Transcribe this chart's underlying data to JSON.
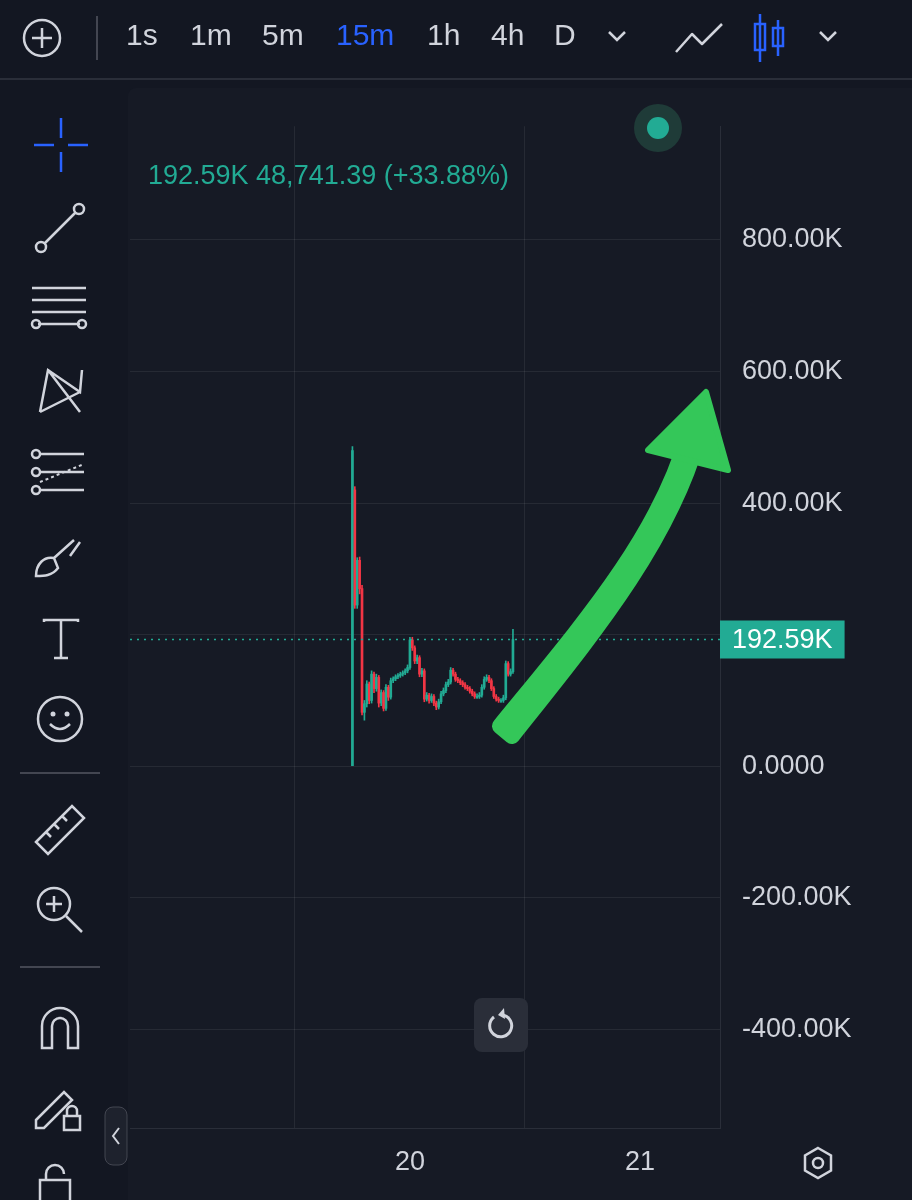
{
  "chart_data": {
    "type": "candlestick",
    "annotations": [
      "192.59K  48,741.39 (+33.88%)",
      "1s",
      "1m",
      "5m",
      "15m",
      "1h",
      "4h",
      "D"
    ],
    "x": [
      19.75,
      19.7604,
      19.7708,
      19.7813,
      19.7917,
      19.8021,
      19.8125,
      19.8229,
      19.8333,
      19.8438,
      19.8542,
      19.8646,
      19.875,
      19.8854,
      19.8958,
      19.9063,
      19.9167,
      19.9271,
      19.9375,
      19.9479,
      19.9583,
      19.9688,
      19.9792,
      19.9896,
      20.0,
      20.0104,
      20.0208,
      20.0313,
      20.0417,
      20.0521,
      20.0625,
      20.0729,
      20.0833,
      20.0938,
      20.1042,
      20.1146,
      20.125,
      20.1354,
      20.1458,
      20.1563,
      20.1667,
      20.1771,
      20.1875,
      20.1979,
      20.2083,
      20.2188,
      20.2292,
      20.2396,
      20.25,
      20.2604,
      20.2708,
      20.2813,
      20.2917,
      20.3021,
      20.3125,
      20.3229,
      20.3333,
      20.3438,
      20.3542,
      20.3646,
      20.375,
      20.3854,
      20.3958,
      20.4063,
      20.4167,
      20.4271,
      20.4375,
      20.4479
    ],
    "ohlc": [
      [
        0,
        486000,
        0,
        480000
      ],
      [
        420000,
        425000,
        240000,
        245000
      ],
      [
        245000,
        317000,
        240000,
        313000
      ],
      [
        313000,
        318000,
        262000,
        270000
      ],
      [
        270000,
        275000,
        78000,
        82000
      ],
      [
        82000,
        100000,
        70000,
        95000
      ],
      [
        95000,
        130000,
        90000,
        125000
      ],
      [
        125000,
        128000,
        95000,
        100000
      ],
      [
        100000,
        145000,
        96000,
        140000
      ],
      [
        140000,
        143000,
        112000,
        118000
      ],
      [
        118000,
        140000,
        114000,
        135000
      ],
      [
        135000,
        138000,
        90000,
        96000
      ],
      [
        96000,
        116000,
        92000,
        112000
      ],
      [
        112000,
        115000,
        84000,
        88000
      ],
      [
        88000,
        124000,
        85000,
        120000
      ],
      [
        120000,
        123000,
        100000,
        105000
      ],
      [
        105000,
        134000,
        102000,
        130000
      ],
      [
        130000,
        136000,
        127000,
        133000
      ],
      [
        133000,
        139000,
        130000,
        136000
      ],
      [
        136000,
        141000,
        133000,
        138000
      ],
      [
        138000,
        143000,
        135000,
        140000
      ],
      [
        140000,
        145000,
        137000,
        142000
      ],
      [
        142000,
        148000,
        139000,
        145000
      ],
      [
        145000,
        154000,
        142000,
        150000
      ],
      [
        150000,
        196000,
        147000,
        192000
      ],
      [
        192000,
        196000,
        176000,
        180000
      ],
      [
        180000,
        183000,
        156000,
        160000
      ],
      [
        160000,
        169000,
        156000,
        165000
      ],
      [
        165000,
        168000,
        136000,
        140000
      ],
      [
        140000,
        149000,
        136000,
        145000
      ],
      [
        145000,
        148000,
        98000,
        102000
      ],
      [
        102000,
        112000,
        99000,
        108000
      ],
      [
        108000,
        111000,
        96000,
        100000
      ],
      [
        100000,
        110000,
        97000,
        106000
      ],
      [
        106000,
        109000,
        92000,
        96000
      ],
      [
        96000,
        99000,
        86000,
        90000
      ],
      [
        90000,
        102000,
        87000,
        98000
      ],
      [
        98000,
        114000,
        95000,
        110000
      ],
      [
        110000,
        119000,
        107000,
        115000
      ],
      [
        115000,
        128000,
        112000,
        124000
      ],
      [
        124000,
        132000,
        121000,
        128000
      ],
      [
        128000,
        150000,
        125000,
        146000
      ],
      [
        146000,
        149000,
        137000,
        140000
      ],
      [
        140000,
        143000,
        129000,
        132000
      ],
      [
        132000,
        135000,
        127000,
        130000
      ],
      [
        130000,
        133000,
        124000,
        127000
      ],
      [
        127000,
        130000,
        121000,
        124000
      ],
      [
        124000,
        127000,
        117000,
        120000
      ],
      [
        120000,
        123000,
        115000,
        118000
      ],
      [
        118000,
        121000,
        111000,
        114000
      ],
      [
        114000,
        117000,
        107000,
        110000
      ],
      [
        110000,
        113000,
        103000,
        106000
      ],
      [
        106000,
        110000,
        103000,
        106000
      ],
      [
        106000,
        112000,
        103000,
        108000
      ],
      [
        108000,
        124000,
        105000,
        120000
      ],
      [
        120000,
        136000,
        117000,
        132000
      ],
      [
        132000,
        139000,
        129000,
        135000
      ],
      [
        135000,
        138000,
        127000,
        130000
      ],
      [
        130000,
        133000,
        115000,
        118000
      ],
      [
        118000,
        121000,
        103000,
        106000
      ],
      [
        106000,
        109000,
        99000,
        102000
      ],
      [
        102000,
        105000,
        97000,
        100000
      ],
      [
        100000,
        103000,
        97000,
        100000
      ],
      [
        100000,
        108000,
        97000,
        104000
      ],
      [
        104000,
        160000,
        101000,
        156000
      ],
      [
        156000,
        159000,
        137000,
        140000
      ],
      [
        140000,
        148000,
        137000,
        143850
      ],
      [
        143850,
        208000,
        141000,
        192590
      ]
    ],
    "colors": [
      "#22ab94",
      "#f23645",
      "#22ab94",
      "#f23645",
      "#f23645",
      "#22ab94",
      "#22ab94",
      "#f23645",
      "#22ab94",
      "#f23645",
      "#22ab94",
      "#f23645",
      "#22ab94",
      "#f23645",
      "#22ab94",
      "#f23645",
      "#22ab94",
      "#22ab94",
      "#22ab94",
      "#22ab94",
      "#22ab94",
      "#22ab94",
      "#22ab94",
      "#22ab94",
      "#22ab94",
      "#f23645",
      "#f23645",
      "#22ab94",
      "#f23645",
      "#22ab94",
      "#f23645",
      "#22ab94",
      "#f23645",
      "#22ab94",
      "#f23645",
      "#f23645",
      "#22ab94",
      "#22ab94",
      "#22ab94",
      "#22ab94",
      "#22ab94",
      "#22ab94",
      "#f23645",
      "#f23645",
      "#f23645",
      "#f23645",
      "#f23645",
      "#f23645",
      "#f23645",
      "#f23645",
      "#f23645",
      "#f23645",
      "#22ab94",
      "#22ab94",
      "#22ab94",
      "#22ab94",
      "#22ab94",
      "#f23645",
      "#f23645",
      "#f23645",
      "#f23645",
      "#f23645",
      "#22ab94",
      "#22ab94",
      "#22ab94",
      "#f23645",
      "#22ab94",
      "#22ab94"
    ],
    "xlim": [
      18.783,
      21.348
    ],
    "xticks": [
      20,
      21
    ],
    "ylim": [
      -550000,
      973000
    ],
    "yticks": [
      {
        "value": 800000,
        "label": "800.00K"
      },
      {
        "value": 600000,
        "label": "600.00K"
      },
      {
        "value": 400000,
        "label": "400.00K"
      },
      {
        "value": 200000,
        "label": null
      },
      {
        "value": 0,
        "label": "0.0000"
      },
      {
        "value": -200000,
        "label": "-200.00K"
      },
      {
        "value": -400000,
        "label": "-400.00K"
      }
    ],
    "ref_lines": [
      {
        "axis": "y",
        "value": 192590,
        "label": "192.59K",
        "color": "#22ab94",
        "line_style": "dotted"
      }
    ],
    "grid": true,
    "legend": false
  }
}
